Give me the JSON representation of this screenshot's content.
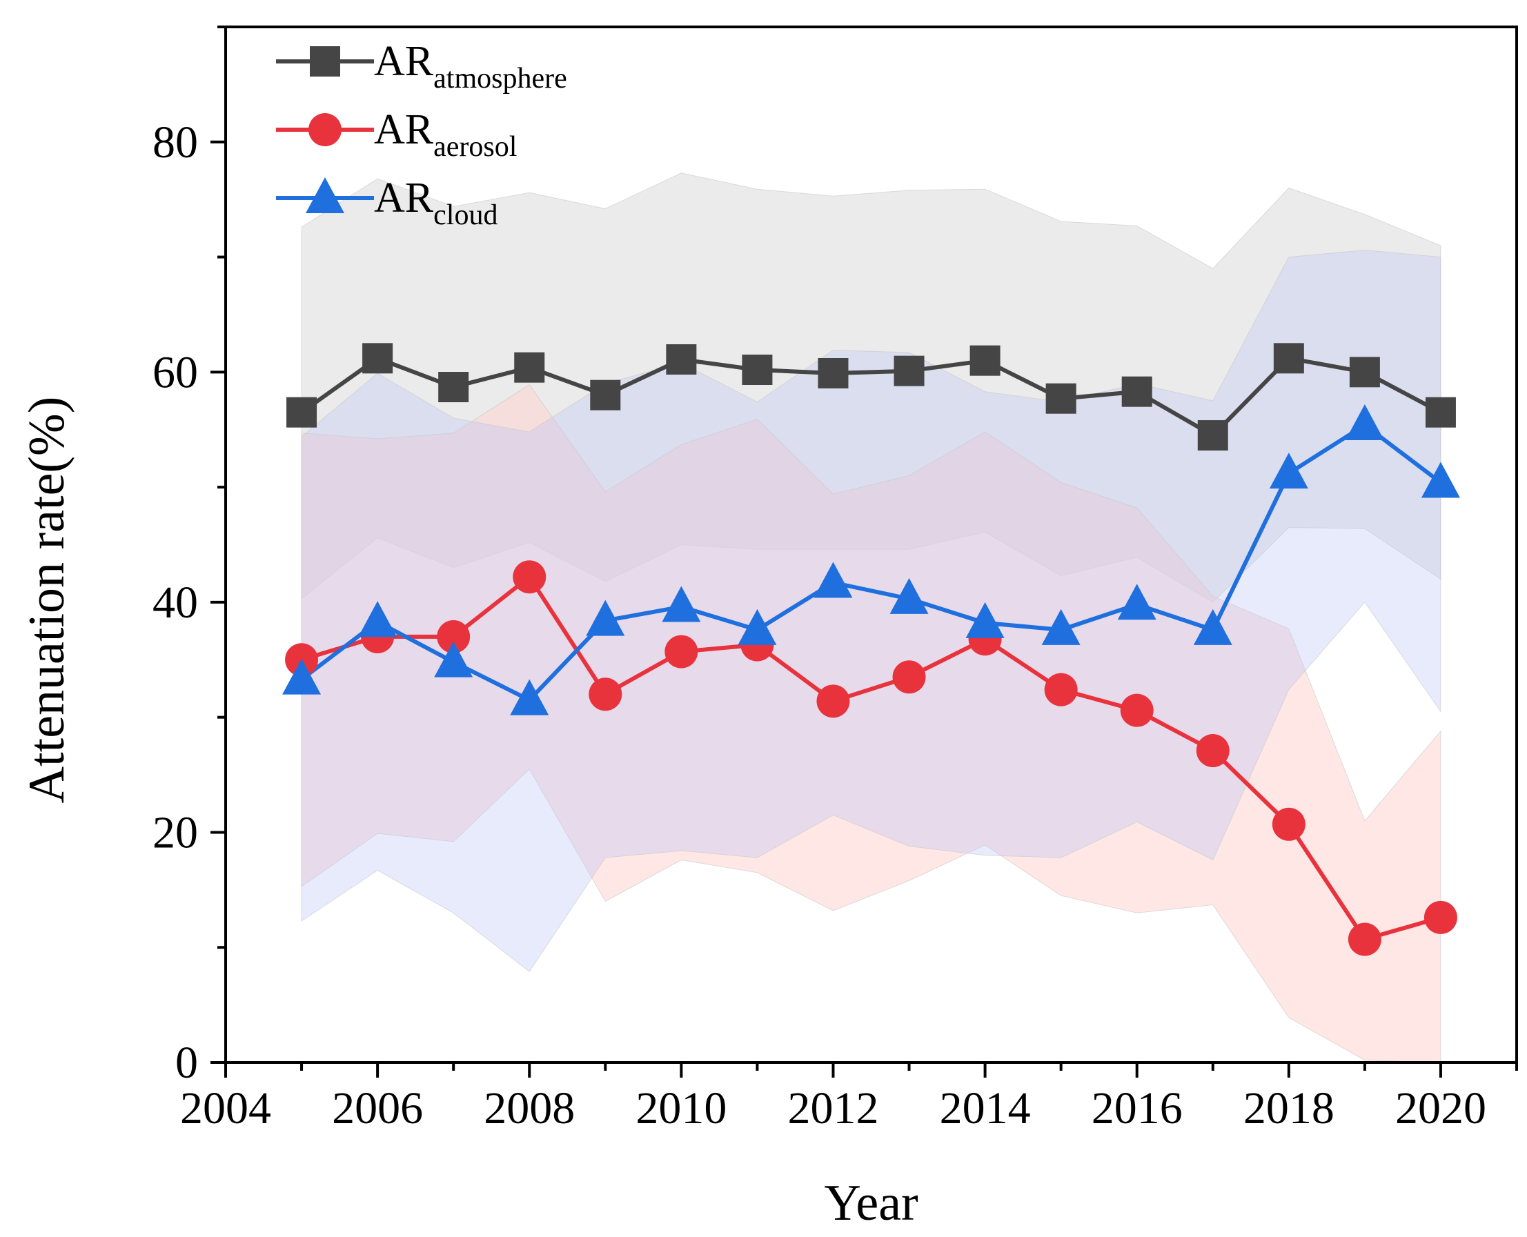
{
  "chart_data": {
    "type": "line",
    "title": "",
    "xlabel": "Year",
    "ylabel": "Attenuation rate(%)",
    "xlim": [
      2004,
      2021
    ],
    "ylim": [
      0,
      90
    ],
    "xticks": [
      2004,
      2006,
      2008,
      2010,
      2012,
      2014,
      2016,
      2018,
      2020
    ],
    "xtick_labels": [
      "2004",
      "2006",
      "2008",
      "2010",
      "2012",
      "2014",
      "2016",
      "2018",
      "2020"
    ],
    "yticks": [
      0,
      20,
      40,
      60,
      80
    ],
    "ytick_labels": [
      "0",
      "20",
      "40",
      "60",
      "80"
    ],
    "legend_position": "top-left",
    "x": [
      2005,
      2006,
      2007,
      2008,
      2009,
      2010,
      2011,
      2012,
      2013,
      2014,
      2015,
      2016,
      2017,
      2018,
      2019,
      2020
    ],
    "series": [
      {
        "name": "AR_atmosphere",
        "label_main": "AR",
        "label_sub": "atmosphere",
        "color": "#454545",
        "marker": "square",
        "band_fill": "#ebebeb",
        "band_opacity": 1.0,
        "values": [
          56.5,
          61.2,
          58.7,
          60.4,
          58.0,
          61.1,
          60.2,
          59.9,
          60.1,
          61.0,
          57.7,
          58.3,
          54.5,
          61.2,
          60.0,
          56.5
        ],
        "upper": [
          72.6,
          76.8,
          74.4,
          75.6,
          74.2,
          77.3,
          75.9,
          75.3,
          75.8,
          75.9,
          73.1,
          72.7,
          69.0,
          76.0,
          73.7,
          71.0
        ],
        "lower": [
          40.3,
          45.6,
          43.0,
          45.2,
          41.8,
          45.0,
          44.6,
          44.6,
          44.6,
          46.1,
          42.3,
          43.9,
          40.0,
          46.5,
          46.4,
          42.0
        ]
      },
      {
        "name": "AR_aerosol",
        "label_main": "AR",
        "label_sub": "aerosol",
        "color": "#e8333d",
        "marker": "circle",
        "band_fill": "#fdd4d0",
        "band_opacity": 0.55,
        "values": [
          35.0,
          37.0,
          37.0,
          42.2,
          32.0,
          35.7,
          36.3,
          31.4,
          33.5,
          36.8,
          32.4,
          30.6,
          27.1,
          20.7,
          10.7,
          12.6
        ],
        "upper": [
          54.7,
          54.2,
          54.7,
          58.9,
          49.6,
          53.7,
          55.9,
          49.4,
          51.0,
          54.8,
          50.4,
          48.2,
          40.5,
          37.7,
          21.0,
          28.8
        ],
        "lower": [
          15.3,
          19.9,
          19.2,
          25.5,
          14.0,
          17.6,
          16.5,
          13.2,
          15.8,
          18.9,
          14.5,
          13.0,
          13.7,
          3.9,
          0.2,
          0.0
        ]
      },
      {
        "name": "AR_cloud",
        "label_main": "AR",
        "label_sub": "cloud",
        "color": "#1f6fdf",
        "marker": "triangle",
        "band_fill": "#bcc6f7",
        "band_opacity": 0.35,
        "values": [
          33.3,
          38.3,
          34.8,
          31.5,
          38.4,
          39.6,
          37.6,
          41.7,
          40.3,
          38.2,
          37.6,
          39.8,
          37.6,
          51.2,
          55.4,
          50.4
        ],
        "upper": [
          54.4,
          59.9,
          56.0,
          54.8,
          59.0,
          60.8,
          57.4,
          61.9,
          61.7,
          58.3,
          57.4,
          59.0,
          57.5,
          70.0,
          70.6,
          70.0
        ],
        "lower": [
          12.3,
          16.7,
          13.0,
          7.9,
          17.8,
          18.4,
          17.8,
          21.5,
          18.8,
          18.0,
          17.8,
          20.9,
          17.6,
          32.4,
          40.0,
          30.5
        ]
      }
    ]
  }
}
